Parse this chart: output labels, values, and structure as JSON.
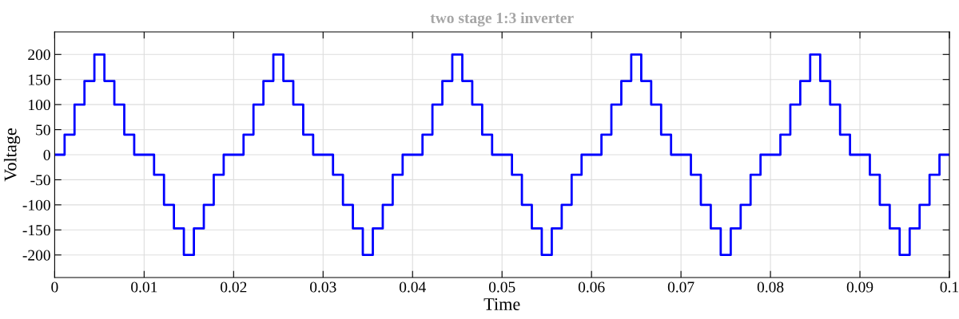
{
  "chart_data": {
    "type": "step",
    "title": "two stage 1:3 inverter",
    "xlabel": "Time",
    "ylabel": "Voltage",
    "series": [
      {
        "color": "#0000ff",
        "x": [
          0,
          0.00111,
          0.00222,
          0.00333,
          0.00444,
          0.00556,
          0.00667,
          0.00778,
          0.00889,
          0.01111,
          0.01222,
          0.01333,
          0.01444,
          0.01556,
          0.01667,
          0.01778,
          0.01889,
          0.02111,
          0.02222,
          0.02333,
          0.02444,
          0.02556,
          0.02667,
          0.02778,
          0.02889,
          0.03111,
          0.03222,
          0.03333,
          0.03444,
          0.03556,
          0.03667,
          0.03778,
          0.03889,
          0.04111,
          0.04222,
          0.04333,
          0.04444,
          0.04556,
          0.04667,
          0.04778,
          0.04889,
          0.05111,
          0.05222,
          0.05333,
          0.05444,
          0.05556,
          0.05667,
          0.05778,
          0.05889,
          0.06111,
          0.06222,
          0.06333,
          0.06444,
          0.06556,
          0.06667,
          0.06778,
          0.06889,
          0.07111,
          0.07222,
          0.07333,
          0.07444,
          0.07556,
          0.07667,
          0.07778,
          0.07889,
          0.08111,
          0.08222,
          0.08333,
          0.08444,
          0.08556,
          0.08667,
          0.08778,
          0.08889,
          0.09111,
          0.09222,
          0.09333,
          0.09444,
          0.09556,
          0.09667,
          0.09778,
          0.09889,
          0.1
        ],
        "values": [
          0,
          40,
          100,
          147,
          200,
          147,
          100,
          40,
          0,
          -40,
          -100,
          -147,
          -200,
          -147,
          -100,
          -40,
          0,
          40,
          100,
          147,
          200,
          147,
          100,
          40,
          0,
          -40,
          -100,
          -147,
          -200,
          -147,
          -100,
          -40,
          0,
          40,
          100,
          147,
          200,
          147,
          100,
          40,
          0,
          -40,
          -100,
          -147,
          -200,
          -147,
          -100,
          -40,
          0,
          40,
          100,
          147,
          200,
          147,
          100,
          40,
          0,
          -40,
          -100,
          -147,
          -200,
          -147,
          -100,
          -40,
          0,
          40,
          100,
          147,
          200,
          147,
          100,
          40,
          0,
          -40,
          -100,
          -147,
          -200,
          -147,
          -100,
          -40,
          0,
          0
        ]
      }
    ],
    "xlim": [
      0,
      0.1
    ],
    "xticks": [
      0,
      0.01,
      0.02,
      0.03,
      0.04,
      0.05,
      0.06,
      0.07,
      0.08,
      0.09,
      0.1
    ],
    "ylim": [
      -245,
      245
    ],
    "yticks": [
      -200,
      -150,
      -100,
      -50,
      0,
      50,
      100,
      150,
      200
    ],
    "grid": true,
    "line_style": "solid"
  }
}
